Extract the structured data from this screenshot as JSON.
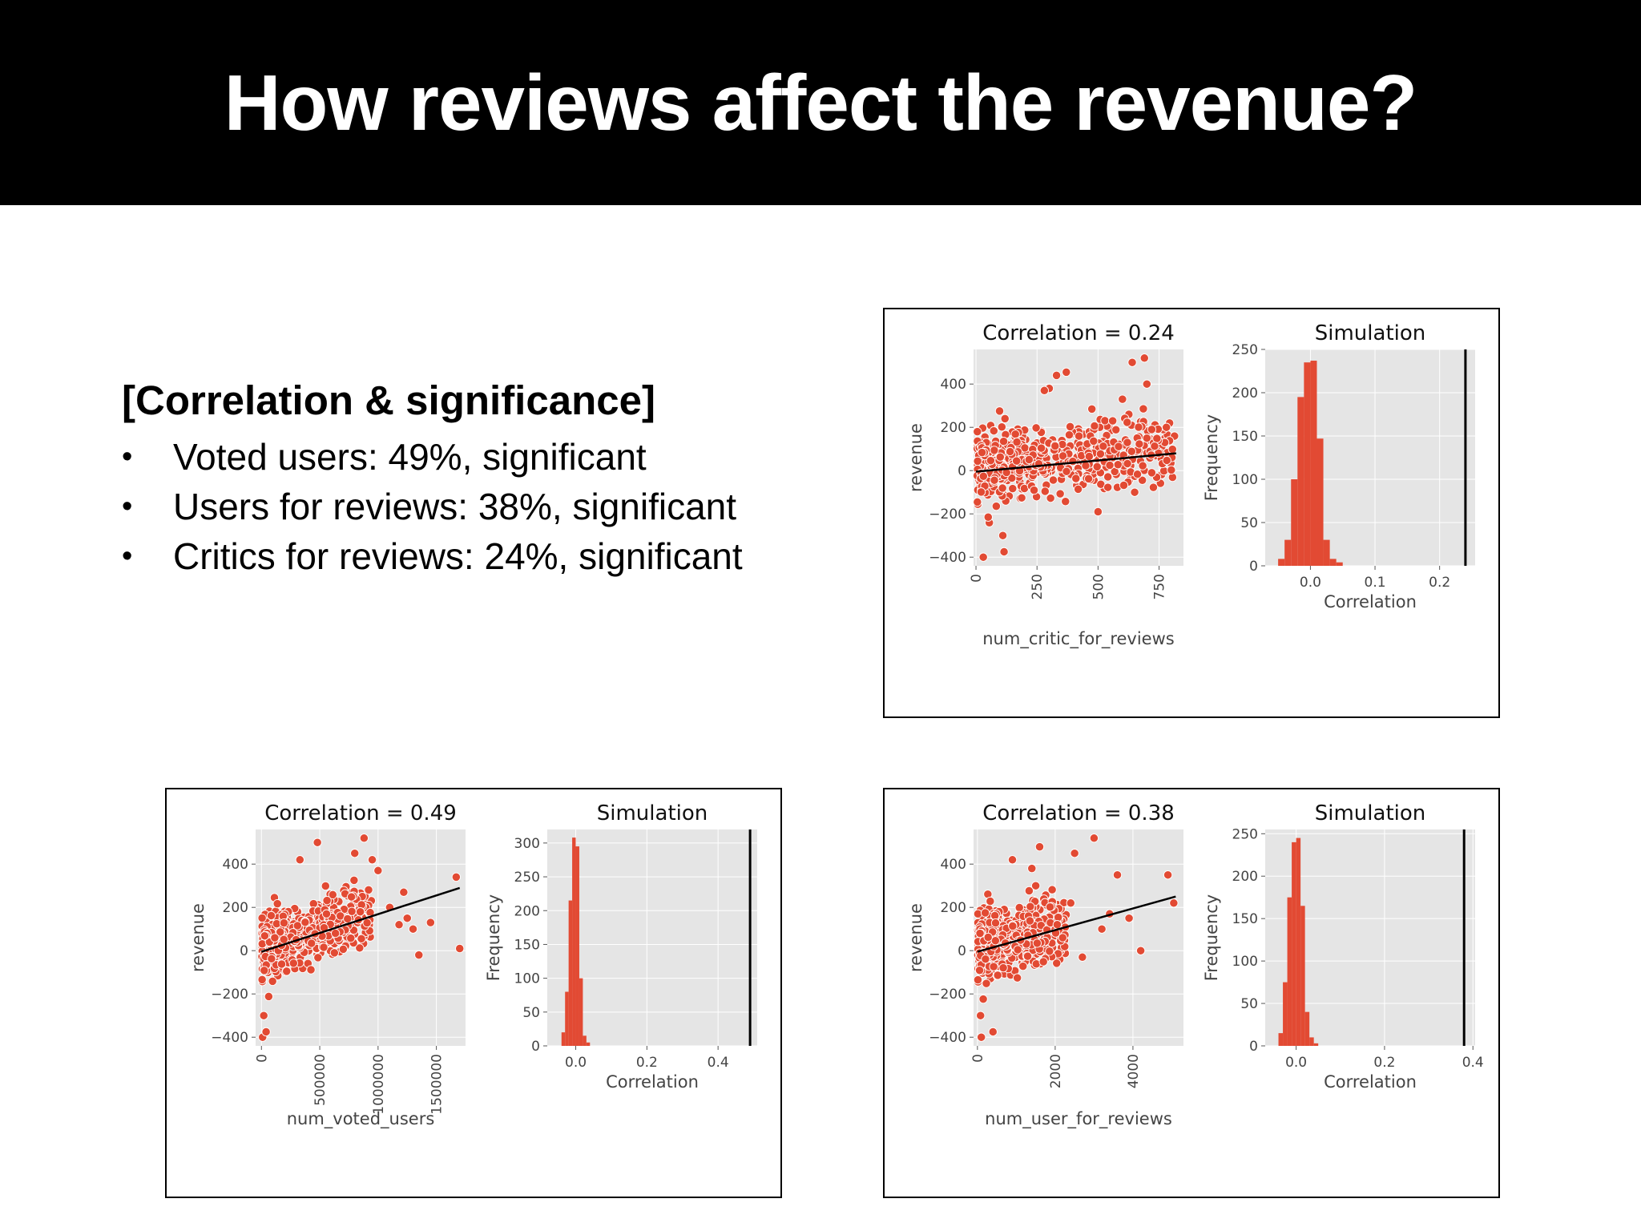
{
  "slide": {
    "title": "How reviews affect the revenue?"
  },
  "bullets": {
    "heading": "[Correlation & significance]",
    "items": [
      "Voted users: 49%, significant",
      "Users for reviews: 38%, significant",
      "Critics for reviews: 24%, significant"
    ],
    "bullet_glyph": "•"
  },
  "colors": {
    "point": "#e24a33",
    "bar": "#e24a33",
    "plot_bg": "#e5e5e5",
    "grid": "#ffffff",
    "line": "#000000"
  },
  "chart_data": [
    {
      "id": "critic",
      "scatter": {
        "type": "scatter",
        "title": "Correlation = 0.24",
        "xlabel": "num_critic_for_reviews",
        "ylabel": "revenue",
        "xlim": [
          -10,
          850
        ],
        "ylim": [
          -440,
          560
        ],
        "xticks": [
          0,
          250,
          500,
          750
        ],
        "yticks": [
          -400,
          -200,
          0,
          200,
          400
        ],
        "xtick_rotation": 90,
        "fit_line": {
          "x": [
            0,
            820
          ],
          "y": [
            -5,
            80
          ]
        },
        "points_sample": {
          "x_range": [
            5,
            820
          ],
          "y_center": 20,
          "y_spread": 80,
          "slope": 0.1,
          "n": 550,
          "outliers": [
            [
              30,
              -400
            ],
            [
              110,
              -300
            ],
            [
              115,
              -375
            ],
            [
              50,
              -215
            ],
            [
              370,
              455
            ],
            [
              330,
              440
            ],
            [
              300,
              380
            ],
            [
              280,
              370
            ],
            [
              600,
              330
            ],
            [
              700,
              400
            ],
            [
              690,
              520
            ],
            [
              640,
              500
            ],
            [
              780,
              200
            ],
            [
              720,
              190
            ],
            [
              700,
              150
            ],
            [
              620,
              130
            ],
            [
              650,
              -100
            ],
            [
              720,
              -10
            ],
            [
              500,
              -190
            ],
            [
              560,
              230
            ]
          ]
        }
      },
      "hist": {
        "type": "bar",
        "title": "Simulation",
        "xlabel": "Correlation",
        "ylabel": "Frequency",
        "xlim": [
          -0.07,
          0.255
        ],
        "ylim": [
          0,
          250
        ],
        "xticks": [
          0.0,
          0.1,
          0.2
        ],
        "xtick_labels": [
          "0.0",
          "0.1",
          "0.2"
        ],
        "yticks": [
          0,
          50,
          100,
          150,
          200,
          250
        ],
        "bin_edges": [
          -0.05,
          -0.04,
          -0.03,
          -0.02,
          -0.01,
          0.0,
          0.01,
          0.02,
          0.03,
          0.04,
          0.05
        ],
        "counts": [
          8,
          30,
          100,
          195,
          235,
          237,
          147,
          30,
          8,
          4
        ],
        "observed_line": 0.24
      }
    },
    {
      "id": "voted",
      "scatter": {
        "type": "scatter",
        "title": "Correlation = 0.49",
        "xlabel": "num_voted_users",
        "ylabel": "revenue",
        "xlim": [
          -50000,
          1750000
        ],
        "ylim": [
          -440,
          560
        ],
        "xticks": [
          0,
          500000,
          1000000,
          1500000
        ],
        "yticks": [
          -400,
          -200,
          0,
          200,
          400
        ],
        "xtick_rotation": 90,
        "fit_line": {
          "x": [
            0,
            1700000
          ],
          "y": [
            -5,
            290
          ]
        },
        "points_sample": {
          "x_range": [
            5000,
            950000
          ],
          "y_center": 10,
          "y_spread": 70,
          "slope": 0.00018,
          "n": 550,
          "outliers": [
            [
              10000,
              -400
            ],
            [
              40000,
              -375
            ],
            [
              20000,
              -300
            ],
            [
              480000,
              500
            ],
            [
              330000,
              420
            ],
            [
              880000,
              520
            ],
            [
              800000,
              450
            ],
            [
              950000,
              420
            ],
            [
              1000000,
              370
            ],
            [
              1220000,
              270
            ],
            [
              1300000,
              100
            ],
            [
              1350000,
              -20
            ],
            [
              1670000,
              340
            ],
            [
              1700000,
              10
            ],
            [
              1450000,
              130
            ],
            [
              1100000,
              200
            ],
            [
              1180000,
              120
            ],
            [
              1250000,
              150
            ]
          ]
        }
      },
      "hist": {
        "type": "bar",
        "title": "Simulation",
        "xlabel": "Correlation",
        "ylabel": "Frequency",
        "xlim": [
          -0.08,
          0.51
        ],
        "ylim": [
          0,
          320
        ],
        "xticks": [
          0.0,
          0.2,
          0.4
        ],
        "xtick_labels": [
          "0.0",
          "0.2",
          "0.4"
        ],
        "yticks": [
          0,
          50,
          100,
          150,
          200,
          250,
          300
        ],
        "bin_edges": [
          -0.04,
          -0.03,
          -0.02,
          -0.01,
          0.0,
          0.01,
          0.02,
          0.03,
          0.04
        ],
        "counts": [
          20,
          80,
          215,
          308,
          295,
          100,
          15,
          5
        ],
        "observed_line": 0.49
      }
    },
    {
      "id": "user",
      "scatter": {
        "type": "scatter",
        "title": "Correlation = 0.38",
        "xlabel": "num_user_for_reviews",
        "ylabel": "revenue",
        "xlim": [
          -100,
          5300
        ],
        "ylim": [
          -440,
          560
        ],
        "xticks": [
          0,
          2000,
          4000
        ],
        "yticks": [
          -400,
          -200,
          0,
          200,
          400
        ],
        "xtick_rotation": 90,
        "fit_line": {
          "x": [
            0,
            5100
          ],
          "y": [
            -5,
            250
          ]
        },
        "points_sample": {
          "x_range": [
            10,
            2300
          ],
          "y_center": 20,
          "y_spread": 75,
          "slope": 0.04,
          "n": 550,
          "outliers": [
            [
              100,
              -400
            ],
            [
              80,
              -300
            ],
            [
              400,
              -375
            ],
            [
              3000,
              520
            ],
            [
              1600,
              480
            ],
            [
              2500,
              450
            ],
            [
              900,
              420
            ],
            [
              1400,
              380
            ],
            [
              1500,
              300
            ],
            [
              3600,
              350
            ],
            [
              4900,
              350
            ],
            [
              5050,
              220
            ],
            [
              4200,
              0
            ],
            [
              3200,
              100
            ],
            [
              2700,
              -30
            ],
            [
              3900,
              150
            ],
            [
              3400,
              170
            ],
            [
              2400,
              220
            ]
          ]
        }
      },
      "hist": {
        "type": "bar",
        "title": "Simulation",
        "xlabel": "Correlation",
        "ylabel": "Frequency",
        "xlim": [
          -0.07,
          0.405
        ],
        "ylim": [
          0,
          255
        ],
        "xticks": [
          0.0,
          0.2,
          0.4
        ],
        "xtick_labels": [
          "0.0",
          "0.2",
          "0.4"
        ],
        "yticks": [
          0,
          50,
          100,
          150,
          200,
          250
        ],
        "bin_edges": [
          -0.04,
          -0.03,
          -0.02,
          -0.01,
          0.0,
          0.01,
          0.02,
          0.03,
          0.04,
          0.05
        ],
        "counts": [
          15,
          75,
          175,
          240,
          245,
          165,
          40,
          10,
          3
        ],
        "observed_line": 0.38
      }
    }
  ]
}
